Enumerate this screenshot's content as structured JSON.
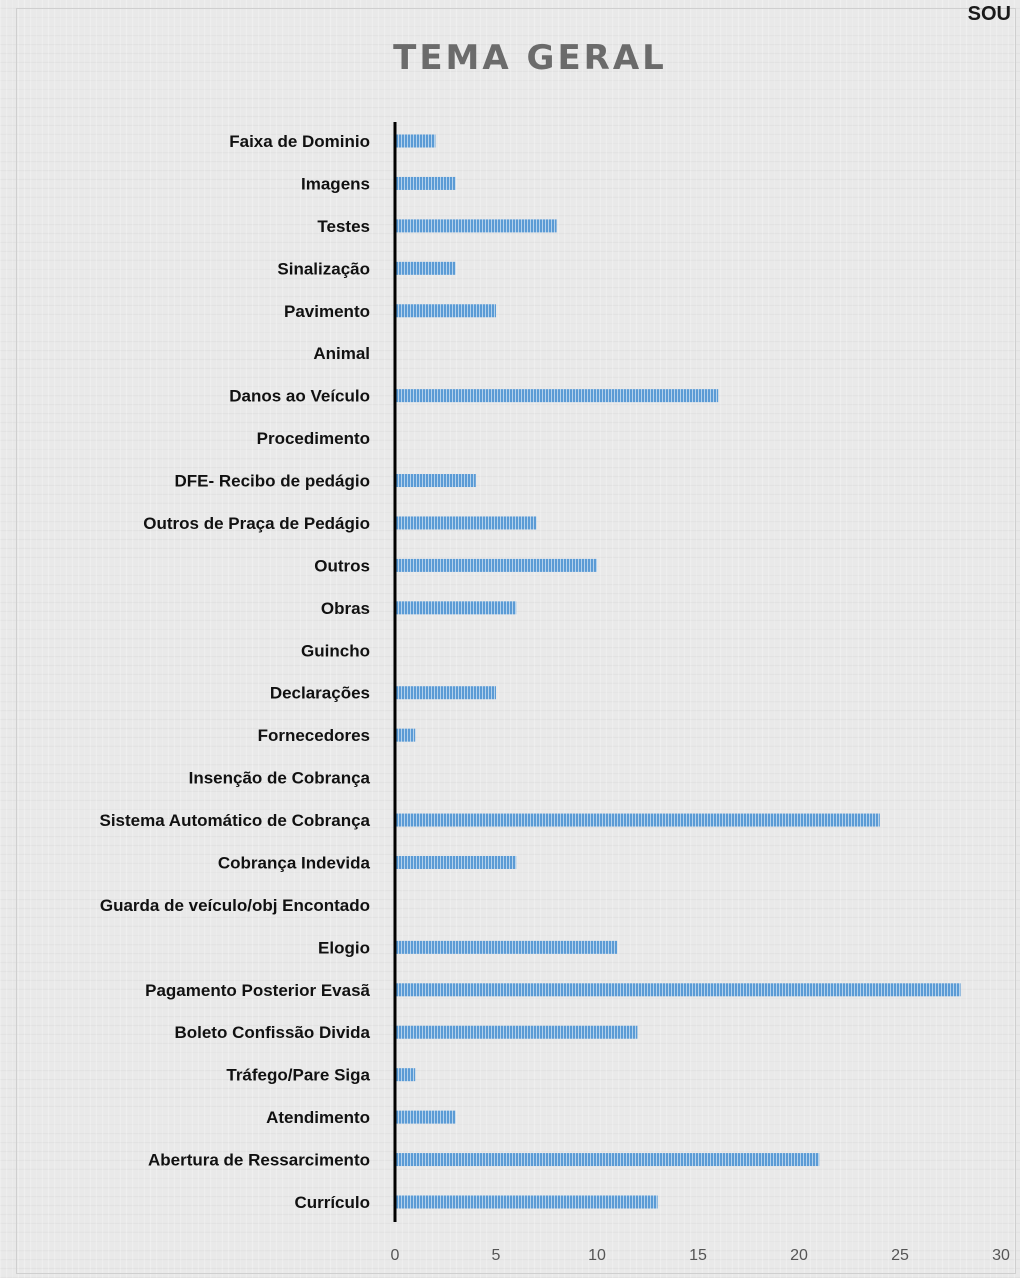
{
  "corner_text": "SOU",
  "chart_data": {
    "type": "bar",
    "orientation": "horizontal",
    "title": "TEMA GERAL",
    "xlabel": "",
    "ylabel": "",
    "xlim": [
      0,
      30
    ],
    "x_ticks": [
      "0",
      "5",
      "10",
      "15",
      "20",
      "25",
      "30"
    ],
    "grid": false,
    "bar_color": "#5b9bd5",
    "categories": [
      "Faixa de Dominio",
      "Imagens",
      "Testes",
      "Sinalização",
      "Pavimento",
      "Animal",
      "Danos ao Veículo",
      "Procedimento",
      "DFE- Recibo de pedágio",
      "Outros de Praça de Pedágio",
      "Outros",
      "Obras",
      "Guincho",
      "Declarações",
      "Fornecedores",
      "Insenção de Cobrança",
      "Sistema Automático de Cobrança",
      "Cobrança Indevida",
      "Guarda de veículo/obj Encontado",
      "Elogio",
      "Pagamento Posterior Evasã",
      "Boleto Confissão Divida",
      "Tráfego/Pare Siga",
      "Atendimento",
      "Abertura de Ressarcimento",
      "Currículo"
    ],
    "values": [
      2,
      3,
      8,
      3,
      5,
      0,
      16,
      0,
      4,
      7,
      10,
      6,
      0,
      5,
      1,
      0,
      24,
      6,
      0,
      11,
      28,
      12,
      1,
      3,
      21,
      13
    ]
  }
}
